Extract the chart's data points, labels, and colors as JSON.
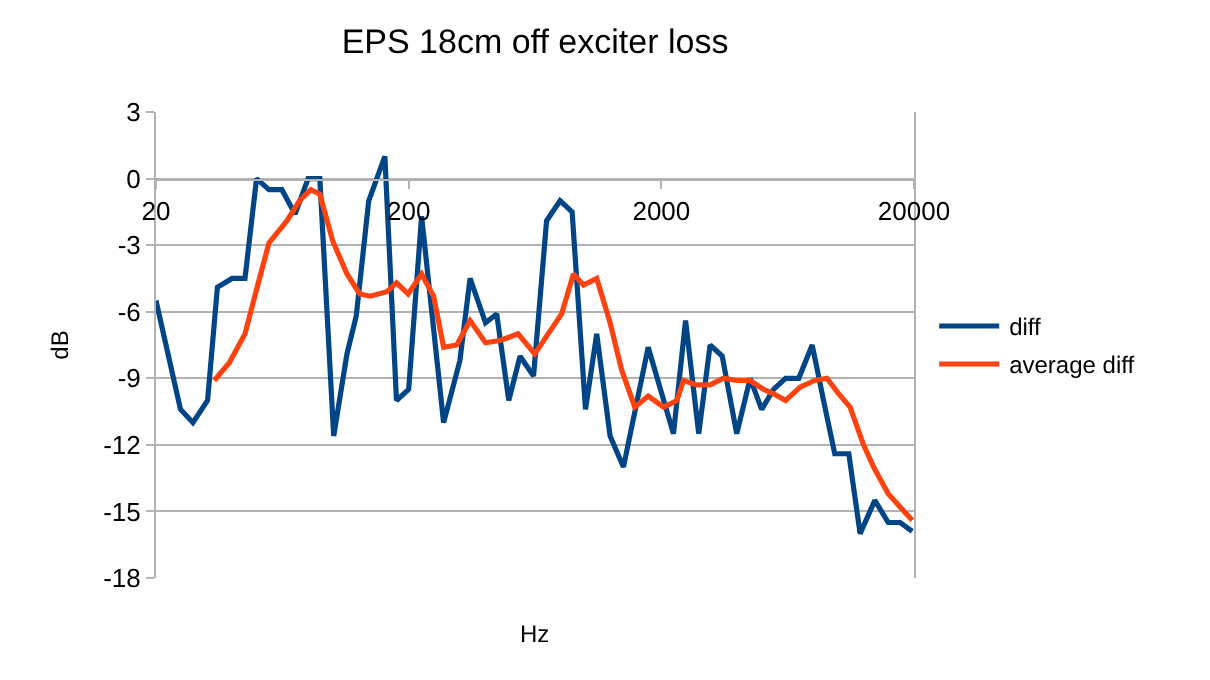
{
  "chart_data": {
    "type": "line",
    "title": "EPS 18cm off exciter loss",
    "xlabel": "Hz",
    "ylabel": "dB",
    "xlim": [
      20,
      20000
    ],
    "xticks": [
      20,
      200,
      2000,
      20000
    ],
    "ylim": [
      -18,
      3
    ],
    "yticks": [
      -18,
      -15,
      -12,
      -9,
      -6,
      -3,
      0,
      3
    ],
    "log": "x",
    "grid": "y",
    "legend": "right",
    "marker": "none",
    "line_style": "solid",
    "series": [
      {
        "name": "diff",
        "color": "#004586",
        "x": [
          20,
          25,
          28,
          32,
          35,
          40,
          45,
          50,
          56,
          63,
          71,
          80,
          89,
          101,
          114,
          124,
          139,
          161,
          179,
          200,
          225,
          275,
          319,
          350,
          403,
          446,
          498,
          552,
          624,
          703,
          795,
          887,
          1002,
          1110,
          1254,
          1416,
          1774,
          2234,
          2494,
          2812,
          3120,
          3483,
          3976,
          4494,
          4990,
          5561,
          6209,
          7000,
          7907,
          8770,
          9712,
          11040,
          12240,
          14000,
          15810,
          17620,
          19680
        ],
        "values": [
          -5.5,
          -10.4,
          -11.0,
          -10.0,
          -4.9,
          -4.5,
          -4.5,
          0,
          -0.5,
          -0.5,
          -1.6,
          0,
          0,
          -11.6,
          -7.9,
          -6.2,
          -1.0,
          1.0,
          -10.0,
          -9.5,
          -1.7,
          -11.0,
          -8.2,
          -4.5,
          -6.5,
          -6.1,
          -10.0,
          -8.0,
          -8.9,
          -1.9,
          -1.0,
          -1.5,
          -10.4,
          -7.0,
          -11.6,
          -13.0,
          -7.6,
          -11.5,
          -6.4,
          -11.5,
          -7.5,
          -8.0,
          -11.5,
          -9.0,
          -10.4,
          -9.5,
          -9.0,
          -9.0,
          -7.5,
          -10.0,
          -12.4,
          -12.4,
          -16.0,
          -14.5,
          -15.5,
          -15.5,
          -15.9
        ]
      },
      {
        "name": "average diff",
        "color": "#ff420e",
        "x": [
          34,
          39,
          45,
          50,
          56,
          66,
          74,
          82,
          89,
          100,
          114,
          128,
          141,
          164,
          179,
          199,
          225,
          251,
          275,
          310,
          350,
          403,
          460,
          542,
          631,
          713,
          806,
          898,
          984,
          1110,
          1254,
          1391,
          1570,
          1774,
          2043,
          2303,
          2448,
          2760,
          3120,
          3525,
          3976,
          4494,
          5080,
          5561,
          6209,
          7080,
          8100,
          9040,
          10070,
          11170,
          12620,
          13840,
          15810,
          17620,
          19680
        ],
        "values": [
          -9.1,
          -8.3,
          -7.0,
          -5.0,
          -2.9,
          -1.9,
          -1.0,
          -0.5,
          -0.7,
          -2.8,
          -4.3,
          -5.2,
          -5.3,
          -5.1,
          -4.7,
          -5.2,
          -4.3,
          -5.3,
          -7.6,
          -7.5,
          -6.4,
          -7.4,
          -7.3,
          -7.0,
          -7.9,
          -7.0,
          -6.1,
          -4.3,
          -4.8,
          -4.5,
          -6.5,
          -8.6,
          -10.3,
          -9.8,
          -10.3,
          -10.0,
          -9.1,
          -9.3,
          -9.3,
          -9.0,
          -9.1,
          -9.1,
          -9.5,
          -9.7,
          -10.0,
          -9.4,
          -9.1,
          -9.0,
          -9.7,
          -10.3,
          -12.0,
          -13.0,
          -14.2,
          -14.8,
          -15.4
        ]
      }
    ]
  }
}
